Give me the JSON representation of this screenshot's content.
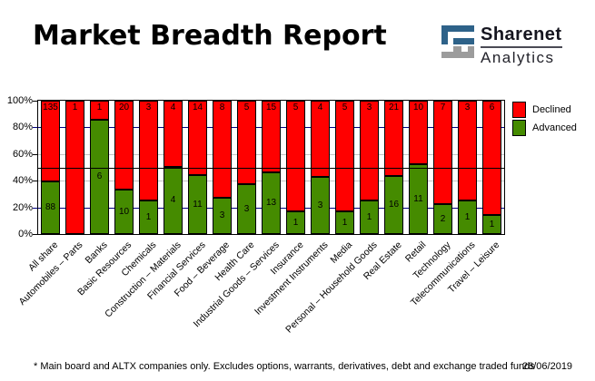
{
  "header": {
    "title": "Market Breadth Report",
    "logo": {
      "line1": "Sharenet",
      "line2": "Analytics"
    }
  },
  "chart_data": {
    "type": "bar",
    "subtype": "100-percent-stacked-column",
    "title": "Market Breadth Report",
    "categories": [
      "All share",
      "Automobiles – Parts",
      "Banks",
      "Basic Resources",
      "Chemicals",
      "Construction – Materials",
      "Financial Services",
      "Food – Beverage",
      "Health Care",
      "Industrial Goods – Services",
      "Insurance",
      "Investment Instruments",
      "Media",
      "Personal – Household Goods",
      "Real Estate",
      "Retail",
      "Technology",
      "Telecommunications",
      "Travel – Leisure"
    ],
    "series": [
      {
        "name": "Declined",
        "color": "#FF0000",
        "values": [
          135,
          1,
          1,
          20,
          3,
          4,
          14,
          8,
          5,
          15,
          5,
          4,
          5,
          3,
          21,
          10,
          7,
          3,
          6
        ]
      },
      {
        "name": "Advanced",
        "color": "#458B00",
        "values": [
          88,
          0,
          6,
          10,
          1,
          4,
          11,
          3,
          3,
          13,
          1,
          3,
          1,
          1,
          16,
          11,
          2,
          1,
          1
        ]
      }
    ],
    "value_labels": "counts shown inside bar segments; declined at top, advanced inside green",
    "ylim": [
      0,
      100
    ],
    "y_ticks": [
      "100%",
      "80%",
      "60%",
      "40%",
      "20%",
      "0%"
    ],
    "grid": true,
    "gridline_pcts": [
      20,
      40,
      60,
      80
    ],
    "reference_line_pct": 50,
    "legend_position": "top-right",
    "legend": [
      {
        "label": "Declined",
        "color": "#FF0000"
      },
      {
        "label": "Advanced",
        "color": "#458B00"
      }
    ]
  },
  "footer": {
    "note": "* Main board and ALTX companies only. Excludes options, warrants, derivatives, debt and exchange traded funds",
    "date": "26/06/2019"
  },
  "colors": {
    "declined": "#FF0000",
    "advanced": "#458B00",
    "grid_gray": "#C3C3C3",
    "grid_navy": "#000080",
    "reference_line": "#000000",
    "frame": "#000000",
    "logo_blue": "#2E6289",
    "logo_gray": "#9C9C9C"
  }
}
